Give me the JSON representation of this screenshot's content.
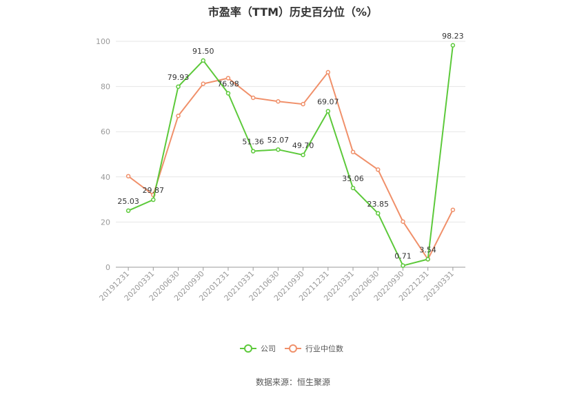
{
  "chart_data": {
    "type": "line",
    "title": "市盈率（TTM）历史百分位（%）",
    "categories": [
      "20191231",
      "20200331",
      "20200630",
      "20200930",
      "20201231",
      "20210331",
      "20210630",
      "20210930",
      "20211231",
      "20220331",
      "20220630",
      "20220930",
      "20221231",
      "20230331"
    ],
    "series": [
      {
        "name": "公司",
        "color": "#5cc93a",
        "values": [
          25.03,
          29.87,
          79.93,
          91.5,
          76.98,
          51.36,
          52.07,
          49.7,
          69.07,
          35.06,
          23.85,
          0.71,
          3.54,
          98.23
        ],
        "labels": [
          "25.03",
          "29.87",
          "79.93",
          "91.50",
          "76.98",
          "51.36",
          "52.07",
          "49.70",
          "69.07",
          "35.06",
          "23.85",
          "0.71",
          "3.54",
          "98.23"
        ]
      },
      {
        "name": "行业中位数",
        "color": "#f0906a",
        "values": [
          40.3,
          32.0,
          67.0,
          81.2,
          83.7,
          75.0,
          73.4,
          72.2,
          86.3,
          51.0,
          43.2,
          20.2,
          3.5,
          25.4
        ]
      }
    ],
    "ylim": [
      0,
      100
    ],
    "yticks": [
      "0",
      "20",
      "40",
      "60",
      "80",
      "100"
    ],
    "grid": true,
    "legend_position": "bottom"
  },
  "source": "数据来源：恒生聚源"
}
